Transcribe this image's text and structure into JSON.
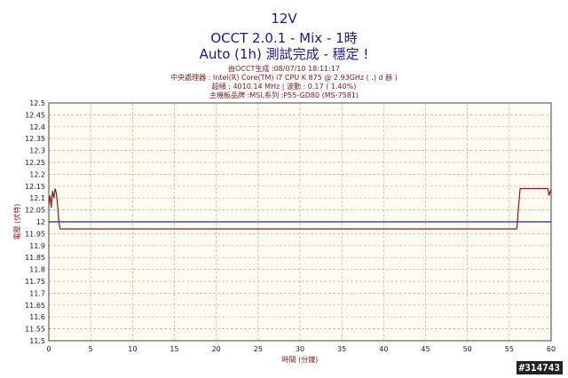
{
  "header": {
    "title": "12V",
    "subtitle1": "OCCT 2.0.1 - Mix - 1時",
    "subtitle2": "Auto (1h) 測試完成 - 穩定 !",
    "info_lines": [
      "由OCCT生成 :08/07/10 18:11:17",
      "中央處理器 : Intel(R) Core(TM) i7 CPU K 875 @ 2.93GHz ( .) d 赫 )",
      "超頻 : 4010.14 MHz | 波動 : 0.17 ( 1.40%)",
      "主機板品牌 :MSI,系列 :P55-GD80 (MS-7581)"
    ]
  },
  "watermark": "#314743",
  "colors": {
    "plot_bg": "#fffbf0",
    "grid": "#b8b8a0",
    "voltage_line": "#8b1a1a",
    "reference_line": "#1a2aa8",
    "axis_text": "#1a1a1a",
    "axis_label": "#8b1a1a"
  },
  "chart_data": {
    "type": "line",
    "xlabel": "時間 (分鐘)",
    "ylabel": "電壓 (伏特)",
    "xlim": [
      0,
      60
    ],
    "ylim": [
      11.5,
      12.5
    ],
    "x_ticks": [
      0,
      5,
      10,
      15,
      20,
      25,
      30,
      35,
      40,
      45,
      50,
      55,
      60
    ],
    "y_ticks": [
      11.5,
      11.55,
      11.6,
      11.65,
      11.7,
      11.75,
      11.8,
      11.85,
      11.9,
      11.95,
      12,
      12.05,
      12.1,
      12.15,
      12.2,
      12.25,
      12.3,
      12.35,
      12.4,
      12.45,
      12.5
    ],
    "grid": true,
    "series": [
      {
        "x": [
          0,
          0.15,
          0.3,
          0.45,
          0.6,
          0.75,
          0.9,
          1.05,
          1.2,
          1.35,
          1.5,
          5,
          20,
          40,
          55.5,
          55.9,
          56.1,
          56.3,
          58,
          59.6,
          59.75,
          59.9,
          60
        ],
        "y": [
          12.07,
          12.11,
          12.06,
          12.13,
          12.1,
          12.14,
          12.12,
          12.07,
          12.0,
          11.97,
          11.97,
          11.97,
          11.97,
          11.97,
          11.97,
          11.97,
          12.06,
          12.14,
          12.14,
          12.14,
          12.11,
          12.13,
          12.12
        ]
      },
      {
        "x": [
          0,
          60
        ],
        "y": [
          12.0,
          12.0
        ]
      }
    ]
  }
}
